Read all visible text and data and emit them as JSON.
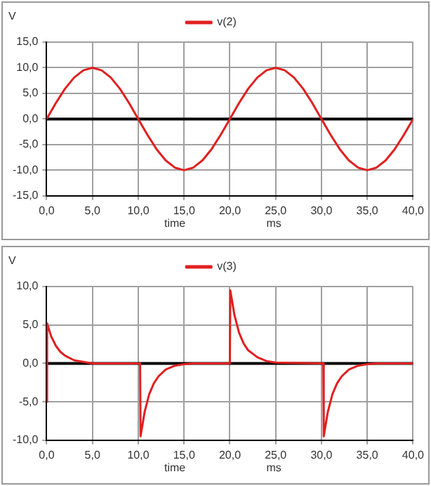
{
  "chart_data": [
    {
      "type": "line",
      "ylabel": "V",
      "xlabel": "time",
      "annotations": [
        "ms"
      ],
      "legend": "top",
      "grid": true,
      "marker": "none",
      "line_style": "solid",
      "xlim": [
        0,
        40
      ],
      "xticks": [
        {
          "value": 0,
          "label": "0,0"
        },
        {
          "value": 5,
          "label": "5,0"
        },
        {
          "value": 10,
          "label": "10,0"
        },
        {
          "value": 15,
          "label": "15,0"
        },
        {
          "value": 20,
          "label": "20,0"
        },
        {
          "value": 25,
          "label": "25,0"
        },
        {
          "value": 30,
          "label": "30,0"
        },
        {
          "value": 35,
          "label": "35,0"
        },
        {
          "value": 40,
          "label": "40,0"
        }
      ],
      "ylim": [
        -15,
        15
      ],
      "yticks": [
        {
          "value": -15,
          "label": "-15,0"
        },
        {
          "value": -10,
          "label": "-10,0"
        },
        {
          "value": -5,
          "label": "-5,0"
        },
        {
          "value": 0,
          "label": "0,0"
        },
        {
          "value": 5,
          "label": "5,0"
        },
        {
          "value": 10,
          "label": "10,0"
        },
        {
          "value": 15,
          "label": "15,0"
        }
      ],
      "ref_lines": [
        {
          "axis": "y",
          "value": 0,
          "color": "#000000"
        }
      ],
      "series": [
        {
          "name": "v(2)",
          "color": "#e02020",
          "x": [
            0,
            1,
            2,
            3,
            4,
            5,
            6,
            7,
            8,
            9,
            10,
            11,
            12,
            13,
            14,
            15,
            16,
            17,
            18,
            19,
            20,
            21,
            22,
            23,
            24,
            25,
            26,
            27,
            28,
            29,
            30,
            31,
            32,
            33,
            34,
            35,
            36,
            37,
            38,
            39,
            40
          ],
          "values": [
            0,
            3.1,
            5.9,
            8.1,
            9.5,
            10,
            9.5,
            8.1,
            5.9,
            3.1,
            0,
            -3.1,
            -5.9,
            -8.1,
            -9.5,
            -10,
            -9.5,
            -8.1,
            -5.9,
            -3.1,
            0,
            3.1,
            5.9,
            8.1,
            9.5,
            10,
            9.5,
            8.1,
            5.9,
            3.1,
            0,
            -3.1,
            -5.9,
            -8.1,
            -9.5,
            -10,
            -9.5,
            -8.1,
            -5.9,
            -3.1,
            0
          ]
        }
      ]
    },
    {
      "type": "line",
      "ylabel": "V",
      "xlabel": "time",
      "annotations": [
        "ms"
      ],
      "legend": "top",
      "grid": true,
      "marker": "none",
      "line_style": "solid",
      "xlim": [
        0,
        40
      ],
      "xticks": [
        {
          "value": 0,
          "label": "0,0"
        },
        {
          "value": 5,
          "label": "5,0"
        },
        {
          "value": 10,
          "label": "10,0"
        },
        {
          "value": 15,
          "label": "15,0"
        },
        {
          "value": 20,
          "label": "20,0"
        },
        {
          "value": 25,
          "label": "25,0"
        },
        {
          "value": 30,
          "label": "30,0"
        },
        {
          "value": 35,
          "label": "35,0"
        },
        {
          "value": 40,
          "label": "40,0"
        }
      ],
      "ylim": [
        -10,
        10
      ],
      "yticks": [
        {
          "value": -10,
          "label": "-10,0"
        },
        {
          "value": -5,
          "label": "-5,0"
        },
        {
          "value": 0,
          "label": "0,0"
        },
        {
          "value": 5,
          "label": "5,0"
        },
        {
          "value": 10,
          "label": "10,0"
        }
      ],
      "ref_lines": [
        {
          "axis": "y",
          "value": 0,
          "color": "#000000"
        }
      ],
      "series": [
        {
          "name": "v(3)",
          "color": "#e02020",
          "x": [
            0,
            0.05,
            0.5,
            1,
            1.5,
            2,
            3,
            4,
            5,
            10.2,
            10.25,
            10.7,
            11.2,
            11.7,
            12.2,
            13,
            14,
            15,
            16,
            20,
            20.05,
            20.5,
            21,
            21.5,
            22,
            23,
            24,
            25,
            30.2,
            30.25,
            30.7,
            31.2,
            31.7,
            32.2,
            33,
            34,
            35,
            36,
            40
          ],
          "values": [
            -5,
            5.2,
            3.5,
            2.3,
            1.5,
            1,
            0.4,
            0.2,
            0,
            0,
            -9.5,
            -6.3,
            -4,
            -2.6,
            -1.7,
            -0.8,
            -0.3,
            -0.1,
            0,
            0,
            9.5,
            6.3,
            4,
            2.6,
            1.7,
            0.8,
            0.3,
            0.1,
            0,
            -9.5,
            -6.3,
            -4,
            -2.6,
            -1.7,
            -0.8,
            -0.3,
            -0.1,
            0,
            0
          ]
        }
      ]
    }
  ]
}
